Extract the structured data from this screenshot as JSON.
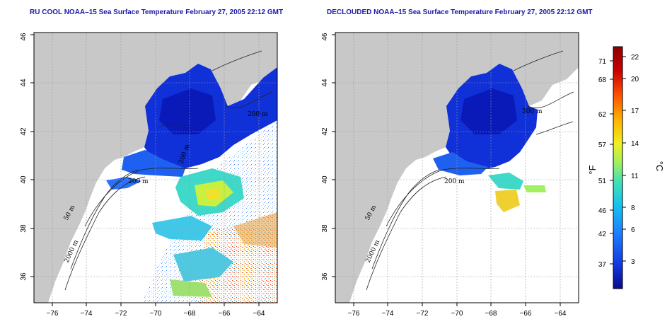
{
  "panels": [
    {
      "title": "RU COOL NOAA–15 Sea Surface Temperature February 27, 2005 22:12 GMT",
      "contour_labels": [
        "50 m",
        "2000 m",
        "200 m",
        "200 m",
        "200 m"
      ]
    },
    {
      "title": "DECLOUDED NOAA–15 Sea Surface Temperature February 27, 2005 22:12 GMT",
      "contour_labels": [
        "50 m",
        "2000 m",
        "200 m",
        "200 m"
      ]
    }
  ],
  "axes": {
    "x_ticks": [
      "−76",
      "−74",
      "−72",
      "−70",
      "−68",
      "−66",
      "−64"
    ],
    "y_ticks": [
      "36",
      "38",
      "40",
      "42",
      "44",
      "46"
    ]
  },
  "colorbar": {
    "unit_f": "°F",
    "unit_c": "°C",
    "f_ticks": [
      "37",
      "42",
      "46",
      "51",
      "57",
      "62",
      "68",
      "71"
    ],
    "c_ticks": [
      "3",
      "6",
      "8",
      "11",
      "14",
      "17",
      "20",
      "22"
    ],
    "colors": [
      "#0a0a8c",
      "#1238e0",
      "#1e78ff",
      "#14c0f0",
      "#40e0b8",
      "#a0f060",
      "#f0f020",
      "#ffb000",
      "#ff5000",
      "#c80000",
      "#8c0000"
    ]
  },
  "colors": {
    "land": "#c8c8c8",
    "cold_water": "#1030d8",
    "deep_cold": "#0a1ab8",
    "grid": "#999999"
  }
}
